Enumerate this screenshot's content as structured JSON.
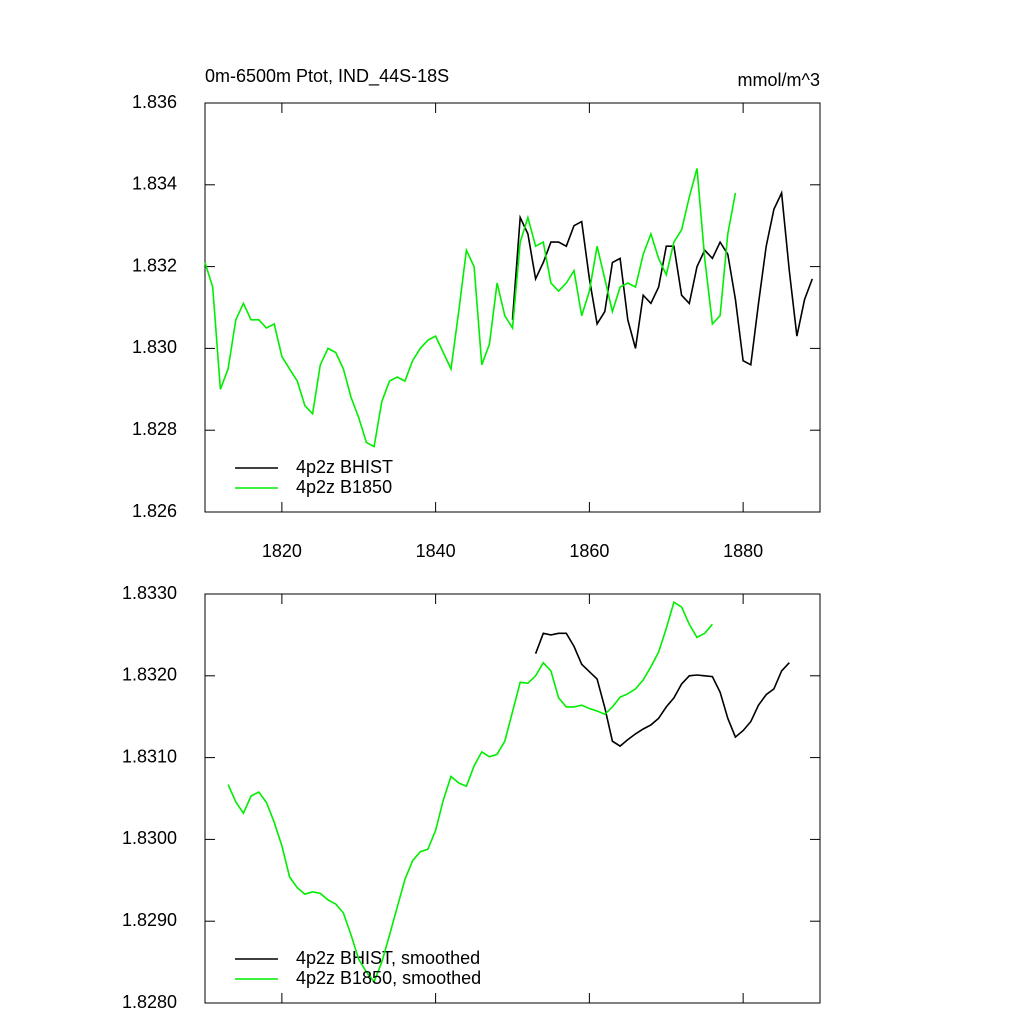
{
  "chart_data": [
    {
      "type": "line",
      "title": "0m-6500m Ptot, IND_44S-18S",
      "units": "mmol/m^3",
      "xlim": [
        1810,
        1890
      ],
      "xticks": [
        1820,
        1840,
        1860,
        1880
      ],
      "ylim": [
        1.826,
        1.836
      ],
      "yticks": [
        1.826,
        1.828,
        {
          "value": 1.83,
          "label": "1.830"
        },
        1.832,
        1.834,
        1.836
      ],
      "legend": "bottom-left",
      "series": [
        {
          "name": "4p2z BHIST",
          "color": "#000000",
          "x": [
            1850,
            1851,
            1852,
            1853,
            1854,
            1855,
            1856,
            1857,
            1858,
            1859,
            1860,
            1861,
            1862,
            1863,
            1864,
            1865,
            1866,
            1867,
            1868,
            1869,
            1870,
            1871,
            1872,
            1873,
            1874,
            1875,
            1876,
            1877,
            1878,
            1879,
            1880,
            1881,
            1882,
            1883,
            1884,
            1885,
            1886,
            1887,
            1888,
            1889
          ],
          "values": [
            1.8307,
            1.8332,
            1.8328,
            1.8317,
            1.8321,
            1.8326,
            1.8326,
            1.8325,
            1.833,
            1.8331,
            1.8317,
            1.8306,
            1.8309,
            1.8321,
            1.8322,
            1.8307,
            1.83,
            1.8313,
            1.8311,
            1.8315,
            1.8325,
            1.8325,
            1.8313,
            1.8311,
            1.832,
            1.8324,
            1.8322,
            1.8326,
            1.8323,
            1.8312,
            1.8297,
            1.8296,
            1.8311,
            1.8325,
            1.8334,
            1.8338,
            1.8319,
            1.8303,
            1.8312,
            1.8317
          ]
        },
        {
          "name": "4p2z B1850",
          "color": "#00ee00",
          "x": [
            1810,
            1811,
            1812,
            1813,
            1814,
            1815,
            1816,
            1817,
            1818,
            1819,
            1820,
            1821,
            1822,
            1823,
            1824,
            1825,
            1826,
            1827,
            1828,
            1829,
            1830,
            1831,
            1832,
            1833,
            1834,
            1835,
            1836,
            1837,
            1838,
            1839,
            1840,
            1841,
            1842,
            1843,
            1844,
            1845,
            1846,
            1847,
            1848,
            1849,
            1850,
            1851,
            1852,
            1853,
            1854,
            1855,
            1856,
            1857,
            1858,
            1859,
            1860,
            1861,
            1862,
            1863,
            1864,
            1865,
            1866,
            1867,
            1868,
            1869,
            1870,
            1871,
            1872,
            1873,
            1874,
            1875,
            1876,
            1877,
            1878,
            1879
          ],
          "values": [
            1.8321,
            1.8315,
            1.829,
            1.8295,
            1.8307,
            1.8311,
            1.8307,
            1.8307,
            1.8305,
            1.8306,
            1.8298,
            1.8295,
            1.8292,
            1.8286,
            1.8284,
            1.8296,
            1.83,
            1.8299,
            1.8295,
            1.8288,
            1.8283,
            1.8277,
            1.8276,
            1.8287,
            1.8292,
            1.8293,
            1.8292,
            1.8297,
            1.83,
            1.8302,
            1.8303,
            1.8299,
            1.8295,
            1.8309,
            1.8324,
            1.832,
            1.8296,
            1.8301,
            1.8316,
            1.8308,
            1.8305,
            1.8326,
            1.8332,
            1.8325,
            1.8326,
            1.8316,
            1.8314,
            1.8316,
            1.8319,
            1.8308,
            1.8314,
            1.8325,
            1.8317,
            1.8309,
            1.8315,
            1.8316,
            1.8315,
            1.8323,
            1.8328,
            1.8322,
            1.8318,
            1.8326,
            1.8329,
            1.8337,
            1.8344,
            1.8322,
            1.8306,
            1.8308,
            1.8328,
            1.8338
          ]
        }
      ]
    },
    {
      "type": "line",
      "xlim": [
        1810,
        1890
      ],
      "xticks": [
        1820,
        1840,
        1860,
        1880
      ],
      "xtick_labels": false,
      "ylim": [
        1.828,
        1.833
      ],
      "yticks": [
        {
          "value": 1.828,
          "label": "1.8280"
        },
        {
          "value": 1.829,
          "label": "1.8290"
        },
        {
          "value": 1.83,
          "label": "1.8300"
        },
        {
          "value": 1.831,
          "label": "1.8310"
        },
        {
          "value": 1.832,
          "label": "1.8320"
        },
        {
          "value": 1.833,
          "label": "1.8330"
        }
      ],
      "legend": "bottom-left",
      "series": [
        {
          "name": "4p2z BHIST, smoothed",
          "color": "#000000",
          "x": [
            1853,
            1854,
            1855,
            1856,
            1857,
            1858,
            1859,
            1860,
            1861,
            1862,
            1863,
            1864,
            1865,
            1866,
            1867,
            1868,
            1869,
            1870,
            1871,
            1872,
            1873,
            1874,
            1875,
            1876,
            1877,
            1878,
            1879,
            1880,
            1881,
            1882,
            1883,
            1884,
            1885,
            1886
          ],
          "values": [
            1.83227,
            1.83252,
            1.8325,
            1.83252,
            1.83252,
            1.83236,
            1.83214,
            1.83205,
            1.83196,
            1.83161,
            1.8312,
            1.83114,
            1.83122,
            1.83129,
            1.83135,
            1.8314,
            1.83148,
            1.83162,
            1.83173,
            1.8319,
            1.832,
            1.83201,
            1.832,
            1.83199,
            1.8318,
            1.83148,
            1.83125,
            1.83133,
            1.83144,
            1.83164,
            1.83177,
            1.83184,
            1.83206,
            1.83216
          ]
        },
        {
          "name": "4p2z B1850, smoothed",
          "color": "#00ee00",
          "x": [
            1813,
            1814,
            1815,
            1816,
            1817,
            1818,
            1819,
            1820,
            1821,
            1822,
            1823,
            1824,
            1825,
            1826,
            1827,
            1828,
            1829,
            1830,
            1831,
            1832,
            1833,
            1834,
            1835,
            1836,
            1837,
            1838,
            1839,
            1840,
            1841,
            1842,
            1843,
            1844,
            1845,
            1846,
            1847,
            1848,
            1849,
            1850,
            1851,
            1852,
            1853,
            1854,
            1855,
            1856,
            1857,
            1858,
            1859,
            1860,
            1861,
            1862,
            1863,
            1864,
            1865,
            1866,
            1867,
            1868,
            1869,
            1870,
            1871,
            1872,
            1873,
            1874,
            1875,
            1876
          ],
          "values": [
            1.83067,
            1.83046,
            1.83032,
            1.83053,
            1.83058,
            1.83045,
            1.83021,
            1.82992,
            1.82954,
            1.82941,
            1.82933,
            1.82936,
            1.82934,
            1.82926,
            1.82921,
            1.8291,
            1.82883,
            1.82853,
            1.82838,
            1.82826,
            1.8285,
            1.82883,
            1.82917,
            1.82951,
            1.82974,
            1.82985,
            1.82988,
            1.83011,
            1.83048,
            1.83077,
            1.83069,
            1.83065,
            1.8309,
            1.83107,
            1.83101,
            1.83104,
            1.8312,
            1.83156,
            1.83192,
            1.83191,
            1.832,
            1.83216,
            1.83206,
            1.83173,
            1.83162,
            1.83162,
            1.83164,
            1.8316,
            1.83157,
            1.83153,
            1.83162,
            1.83174,
            1.83178,
            1.83184,
            1.83195,
            1.83211,
            1.83229,
            1.83258,
            1.8329,
            1.83284,
            1.83263,
            1.83247,
            1.83252,
            1.83263
          ]
        }
      ]
    }
  ]
}
